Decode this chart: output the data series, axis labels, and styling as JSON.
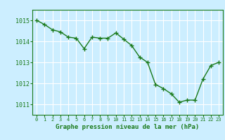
{
  "x": [
    0,
    1,
    2,
    3,
    4,
    5,
    6,
    7,
    8,
    9,
    10,
    11,
    12,
    13,
    14,
    15,
    16,
    17,
    18,
    19,
    20,
    21,
    22,
    23
  ],
  "y": [
    1015.0,
    1014.8,
    1014.55,
    1014.45,
    1014.2,
    1014.15,
    1013.65,
    1014.2,
    1014.15,
    1014.15,
    1014.4,
    1014.1,
    1013.8,
    1013.25,
    1013.0,
    1011.95,
    1011.75,
    1011.5,
    1011.1,
    1011.2,
    1011.2,
    1012.2,
    1012.85,
    1013.0
  ],
  "line_color": "#1a7a1a",
  "marker_color": "#1a7a1a",
  "bg_color": "#cceeff",
  "grid_color": "#ffffff",
  "xlabel": "Graphe pression niveau de la mer (hPa)",
  "xlabel_color": "#1a7a1a",
  "tick_color": "#1a7a1a",
  "ylim_min": 1010.5,
  "ylim_max": 1015.5,
  "xlim_min": -0.5,
  "xlim_max": 23.5,
  "yticks": [
    1011,
    1012,
    1013,
    1014,
    1015
  ],
  "xticks": [
    0,
    1,
    2,
    3,
    4,
    5,
    6,
    7,
    8,
    9,
    10,
    11,
    12,
    13,
    14,
    15,
    16,
    17,
    18,
    19,
    20,
    21,
    22,
    23
  ]
}
